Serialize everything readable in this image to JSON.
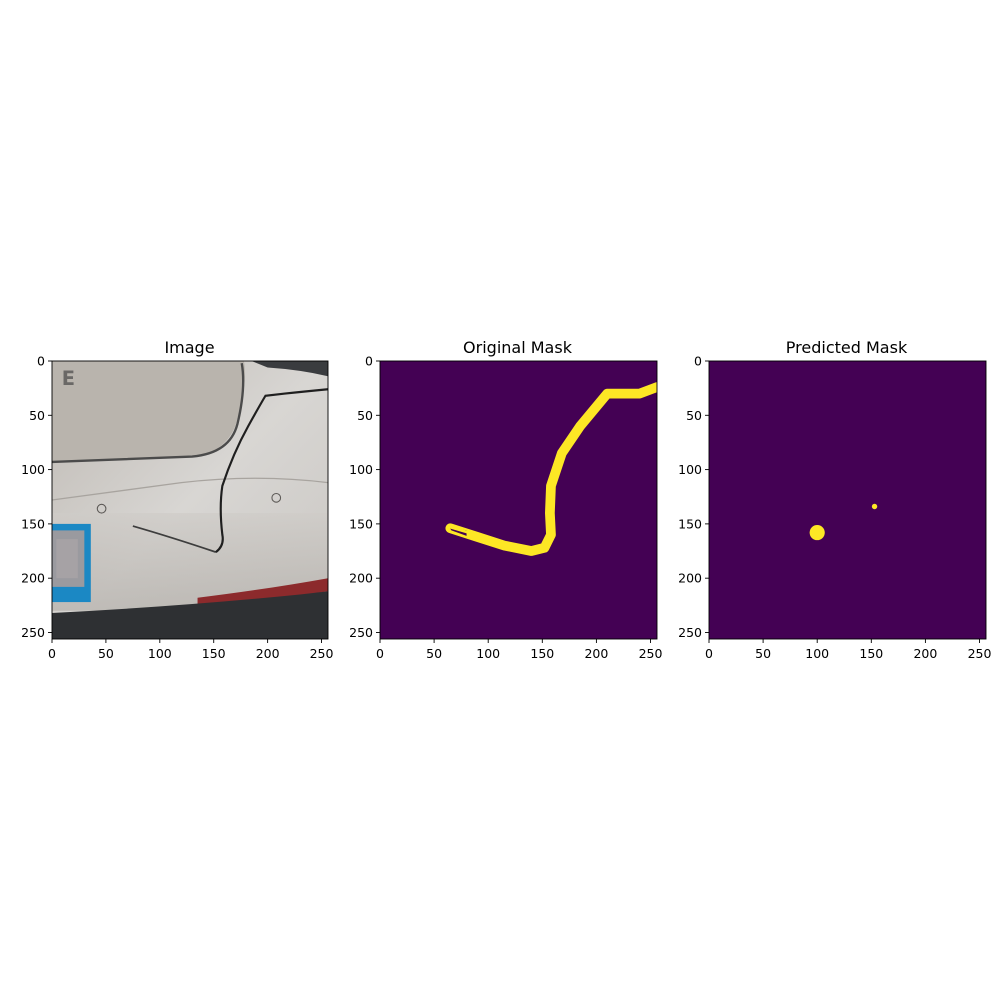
{
  "figure": {
    "background": "#ffffff",
    "mask_background": "#440154",
    "mask_foreground": "#fde725"
  },
  "chart_data": [
    {
      "type": "heatmap",
      "title": "Image",
      "content": "photo: rear of a white car with a crack across the bumper panel; blurred license plate at lower left",
      "xlim": [
        0,
        256
      ],
      "ylim": [
        256,
        0
      ],
      "xticks": [
        0,
        50,
        100,
        150,
        200,
        250
      ],
      "yticks": [
        0,
        50,
        100,
        150,
        200,
        250
      ],
      "grid": false
    },
    {
      "type": "heatmap",
      "title": "Original Mask",
      "colormap": "viridis",
      "xlim": [
        0,
        256
      ],
      "ylim": [
        256,
        0
      ],
      "xticks": [
        0,
        50,
        100,
        150,
        200,
        250
      ],
      "yticks": [
        0,
        50,
        100,
        150,
        200,
        250
      ],
      "grid": false,
      "regions": [
        {
          "label_value": 1,
          "centerline": [
            [
              65,
              154
            ],
            [
              90,
              162
            ],
            [
              115,
              170
            ],
            [
              140,
              175
            ],
            [
              152,
              172
            ],
            [
              158,
              160
            ],
            [
              157,
              140
            ],
            [
              158,
              115
            ],
            [
              168,
              85
            ],
            [
              185,
              60
            ],
            [
              200,
              42
            ],
            [
              210,
              30
            ],
            [
              225,
              30
            ],
            [
              240,
              30
            ],
            [
              256,
              24
            ]
          ]
        }
      ]
    },
    {
      "type": "heatmap",
      "title": "Predicted Mask",
      "colormap": "viridis",
      "xlim": [
        0,
        256
      ],
      "ylim": [
        256,
        0
      ],
      "xticks": [
        0,
        50,
        100,
        150,
        200,
        250
      ],
      "yticks": [
        0,
        50,
        100,
        150,
        200,
        250
      ],
      "grid": false,
      "regions": [
        {
          "label_value": 1,
          "center": [
            100,
            158
          ],
          "radius": 7
        },
        {
          "label_value": 1,
          "center": [
            153,
            134
          ],
          "radius": 2.5
        }
      ]
    }
  ]
}
